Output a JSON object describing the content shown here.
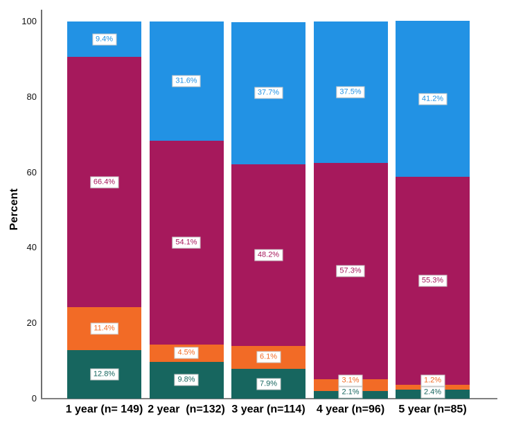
{
  "chart_data": {
    "type": "bar",
    "stacked": true,
    "orientation": "vertical",
    "title": "",
    "xlabel": "",
    "ylabel": "Percent",
    "ylim": [
      0,
      100
    ],
    "yticks": [
      0,
      20,
      40,
      60,
      80,
      100
    ],
    "grid": false,
    "legend": "none",
    "value_label_format": "{value}%",
    "categories": [
      "1 year (n= 149)",
      "2 year  (n=132)",
      "3 year (n=114)",
      "4 year (n=96)",
      "5 year (n=85)"
    ],
    "series": [
      {
        "name": "teal-bottom-segment",
        "color": "#17665F",
        "values": [
          12.8,
          9.8,
          7.9,
          2.1,
          2.4
        ]
      },
      {
        "name": "orange-segment",
        "color": "#F26B26",
        "values": [
          11.4,
          4.5,
          6.1,
          3.1,
          1.2
        ]
      },
      {
        "name": "magenta-segment",
        "color": "#A6195C",
        "values": [
          66.4,
          54.1,
          48.2,
          57.3,
          55.3
        ]
      },
      {
        "name": "blue-top-segment",
        "color": "#2292E4",
        "values": [
          9.4,
          31.6,
          37.7,
          37.5,
          41.2
        ]
      }
    ]
  }
}
